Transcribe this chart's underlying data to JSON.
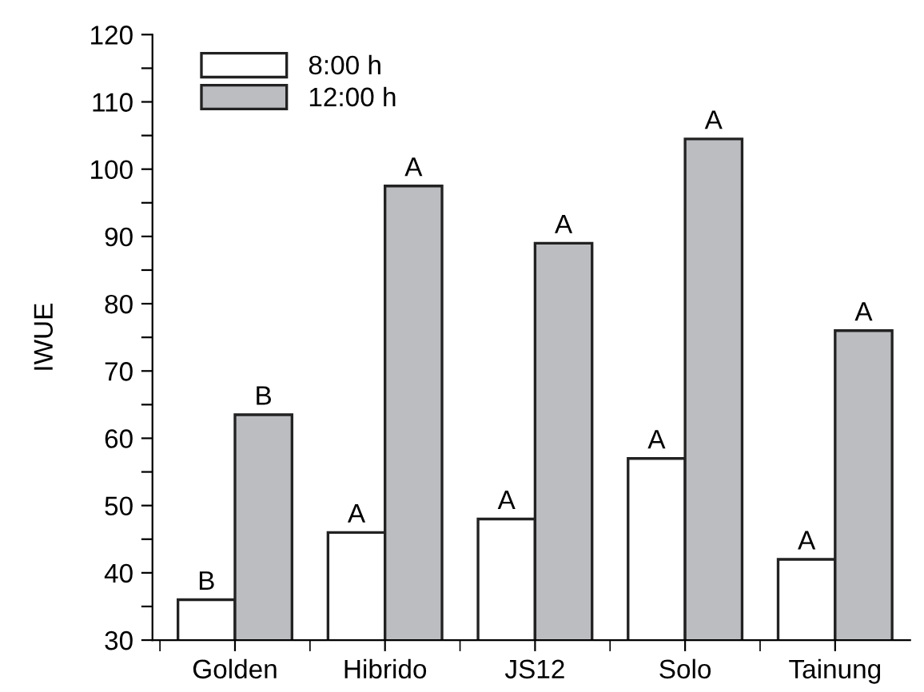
{
  "chart_data": {
    "type": "bar",
    "ylabel": "IWUE",
    "categories": [
      "Golden",
      "Hibrido",
      "JS12",
      "Solo",
      "Tainung"
    ],
    "series": [
      {
        "name": "8:00 h",
        "color": "#ffffff",
        "values": [
          36,
          46,
          48,
          57,
          42
        ]
      },
      {
        "name": "12:00 h",
        "color": "#bcbdc1",
        "values": [
          63.5,
          97.5,
          89,
          104.5,
          76
        ]
      }
    ],
    "ylim": [
      30,
      120
    ],
    "yticks": [
      30,
      {
        "value": 35,
        "label": null
      },
      40,
      {
        "value": 45,
        "label": null
      },
      50,
      {
        "value": 55,
        "label": null
      },
      60,
      {
        "value": 65,
        "label": null
      },
      70,
      {
        "value": 75,
        "label": null
      },
      80,
      {
        "value": 85,
        "label": null
      },
      90,
      {
        "value": 95,
        "label": null
      },
      100,
      {
        "value": 105,
        "label": null
      },
      110,
      {
        "value": 115,
        "label": null
      },
      120
    ],
    "annotations": [
      {
        "text": "B",
        "x": "Golden",
        "y": 36
      },
      {
        "text": "B",
        "x": "Golden",
        "y": 63.5
      },
      {
        "text": "A",
        "x": "Hibrido",
        "y": 46
      },
      {
        "text": "A",
        "x": "Hibrido",
        "y": 97.5
      },
      {
        "text": "A",
        "x": "JS12",
        "y": 48
      },
      {
        "text": "A",
        "x": "JS12",
        "y": 89
      },
      {
        "text": "A",
        "x": "Solo",
        "y": 57
      },
      {
        "text": "A",
        "x": "Solo",
        "y": 104.5
      },
      {
        "text": "A",
        "x": "Tainung",
        "y": 42
      },
      {
        "text": "A",
        "x": "Tainung",
        "y": 76
      }
    ],
    "grid": false,
    "legend": "top left"
  }
}
